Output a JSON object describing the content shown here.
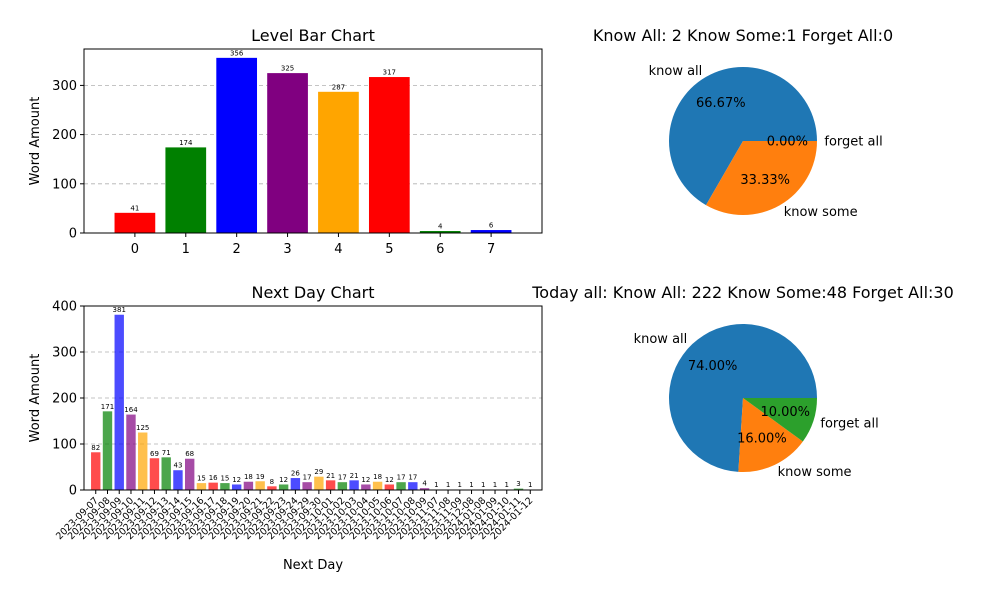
{
  "colors": {
    "palette5": [
      "#ff0000",
      "#008000",
      "#0000ff",
      "#800080",
      "#ffa500"
    ],
    "pie_know_all": "#1f77b4",
    "pie_know_some": "#ff7f0e",
    "pie_forget_all": "#2ca02c",
    "grid": "#b0b0b0"
  },
  "chart_data": [
    {
      "type": "bar",
      "title": "Level Bar Chart",
      "xlabel": "",
      "ylabel": "Word Amount",
      "categories": [
        "0",
        "1",
        "2",
        "3",
        "4",
        "5",
        "6",
        "7"
      ],
      "values": [
        41,
        174,
        356,
        325,
        287,
        317,
        4,
        6
      ],
      "ylim": [
        0,
        374
      ],
      "yticks": [
        0,
        100,
        200,
        300
      ],
      "grid": "y-dashed",
      "bar_alpha": 1
    },
    {
      "type": "pie",
      "title": "Know All: 2    Know Some:1    Forget All:0",
      "labels": [
        "know all",
        "know some",
        "forget all"
      ],
      "values": [
        2,
        1,
        0
      ],
      "pct_labels": [
        "66.67%",
        "33.33%",
        "0.00%"
      ],
      "colors": [
        "#1f77b4",
        "#ff7f0e",
        "#2ca02c"
      ]
    },
    {
      "type": "bar",
      "title": "Next Day Chart",
      "xlabel": "Next Day",
      "ylabel": "Word Amount",
      "categories": [
        "2023-09-07",
        "2023-09-08",
        "2023-09-09",
        "2023-09-10",
        "2023-09-11",
        "2023-09-12",
        "2023-09-13",
        "2023-09-14",
        "2023-09-15",
        "2023-09-16",
        "2023-09-17",
        "2023-09-18",
        "2023-09-19",
        "2023-09-20",
        "2023-09-21",
        "2023-09-22",
        "2023-09-23",
        "2023-09-24",
        "2023-09-29",
        "2023-09-30",
        "2023-10-01",
        "2023-10-02",
        "2023-10-03",
        "2023-10-04",
        "2023-10-05",
        "2023-10-06",
        "2023-10-07",
        "2023-10-08",
        "2023-10-09",
        "2023-11-07",
        "2023-11-08",
        "2023-11-09",
        "2023-12-08",
        "2024-01-08",
        "2024-01-09",
        "2024-01-10",
        "2024-01-11",
        "2024-01-12"
      ],
      "values": [
        82,
        171,
        381,
        164,
        125,
        69,
        71,
        43,
        68,
        15,
        16,
        15,
        12,
        18,
        19,
        8,
        12,
        26,
        17,
        29,
        21,
        17,
        21,
        12,
        18,
        12,
        17,
        17,
        4,
        1,
        1,
        1,
        1,
        1,
        1,
        1,
        3,
        1
      ],
      "ylim": [
        0,
        400
      ],
      "yticks": [
        0,
        100,
        200,
        300,
        400
      ],
      "grid": "y-dashed",
      "bar_alpha": 0.7
    },
    {
      "type": "pie",
      "title": "Today all:  Know All: 222    Know Some:48    Forget All:30",
      "labels": [
        "know all",
        "know some",
        "forget all"
      ],
      "values": [
        222,
        48,
        30
      ],
      "pct_labels": [
        "74.00%",
        "16.00%",
        "10.00%"
      ],
      "colors": [
        "#1f77b4",
        "#ff7f0e",
        "#2ca02c"
      ]
    }
  ]
}
